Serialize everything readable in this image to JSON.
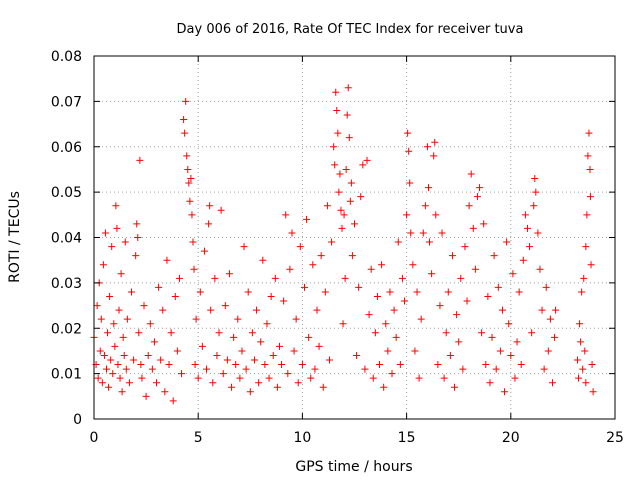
{
  "chart_data": {
    "type": "scatter",
    "title": "Day 006 of 2016, Rate Of TEC Index for receiver tuva",
    "xlabel": "GPS time / hours",
    "ylabel": "ROTI / TECUs",
    "xlim": [
      0,
      25
    ],
    "ylim": [
      0,
      0.08
    ],
    "grid": true,
    "marker": "plus",
    "marker_color": "#ff0000",
    "x_ticks": [
      0,
      5,
      10,
      15,
      20,
      25
    ],
    "x_tick_labels": [
      "0",
      "5",
      "10",
      "15",
      "20",
      "25"
    ],
    "y_ticks": [
      0,
      0.01,
      0.02,
      0.03,
      0.04,
      0.05,
      0.06,
      0.07,
      0.08
    ],
    "y_tick_labels": [
      "0",
      "0.01",
      "0.02",
      "0.03",
      "0.04",
      "0.05",
      "0.06",
      "0.07",
      "0.08"
    ],
    "series": [
      {
        "color": "#ff0000",
        "points": [
          [
            0.0,
            0.018
          ],
          [
            0.1,
            0.012
          ],
          [
            0.15,
            0.025
          ],
          [
            0.2,
            0.009
          ],
          [
            0.25,
            0.03
          ],
          [
            0.3,
            0.015
          ],
          [
            0.35,
            0.022
          ],
          [
            0.4,
            0.008
          ],
          [
            0.45,
            0.034
          ],
          [
            0.5,
            0.014
          ],
          [
            0.55,
            0.041
          ],
          [
            0.6,
            0.011
          ],
          [
            0.65,
            0.019
          ],
          [
            0.7,
            0.007
          ],
          [
            0.75,
            0.027
          ],
          [
            0.8,
            0.013
          ],
          [
            0.85,
            0.038
          ],
          [
            0.9,
            0.01
          ],
          [
            0.95,
            0.021
          ],
          [
            1.0,
            0.016
          ],
          [
            1.05,
            0.047
          ],
          [
            1.1,
            0.042
          ],
          [
            1.15,
            0.012
          ],
          [
            1.2,
            0.024
          ],
          [
            1.25,
            0.009
          ],
          [
            1.3,
            0.032
          ],
          [
            1.35,
            0.006
          ],
          [
            1.4,
            0.018
          ],
          [
            1.45,
            0.014
          ],
          [
            1.5,
            0.039
          ],
          [
            1.55,
            0.011
          ],
          [
            1.6,
            0.022
          ],
          [
            1.7,
            0.008
          ],
          [
            1.8,
            0.028
          ],
          [
            1.9,
            0.013
          ],
          [
            2.0,
            0.036
          ],
          [
            2.05,
            0.043
          ],
          [
            2.1,
            0.04
          ],
          [
            2.15,
            0.019
          ],
          [
            2.2,
            0.057
          ],
          [
            2.25,
            0.012
          ],
          [
            2.3,
            0.009
          ],
          [
            2.4,
            0.025
          ],
          [
            2.5,
            0.005
          ],
          [
            2.6,
            0.014
          ],
          [
            2.7,
            0.021
          ],
          [
            2.8,
            0.011
          ],
          [
            2.9,
            0.017
          ],
          [
            3.0,
            0.008
          ],
          [
            3.1,
            0.029
          ],
          [
            3.2,
            0.013
          ],
          [
            3.3,
            0.024
          ],
          [
            3.4,
            0.006
          ],
          [
            3.5,
            0.035
          ],
          [
            3.6,
            0.012
          ],
          [
            3.7,
            0.019
          ],
          [
            3.8,
            0.004
          ],
          [
            3.9,
            0.027
          ],
          [
            4.0,
            0.015
          ],
          [
            4.1,
            0.031
          ],
          [
            4.2,
            0.01
          ],
          [
            4.3,
            0.066
          ],
          [
            4.35,
            0.063
          ],
          [
            4.4,
            0.07
          ],
          [
            4.45,
            0.058
          ],
          [
            4.5,
            0.055
          ],
          [
            4.55,
            0.052
          ],
          [
            4.6,
            0.048
          ],
          [
            4.65,
            0.053
          ],
          [
            4.7,
            0.045
          ],
          [
            4.75,
            0.039
          ],
          [
            4.8,
            0.033
          ],
          [
            4.85,
            0.012
          ],
          [
            4.9,
            0.022
          ],
          [
            5.0,
            0.009
          ],
          [
            5.1,
            0.028
          ],
          [
            5.2,
            0.016
          ],
          [
            5.3,
            0.037
          ],
          [
            5.4,
            0.011
          ],
          [
            5.5,
            0.043
          ],
          [
            5.55,
            0.047
          ],
          [
            5.6,
            0.024
          ],
          [
            5.7,
            0.008
          ],
          [
            5.8,
            0.031
          ],
          [
            5.9,
            0.014
          ],
          [
            6.0,
            0.019
          ],
          [
            6.1,
            0.046
          ],
          [
            6.2,
            0.01
          ],
          [
            6.3,
            0.025
          ],
          [
            6.4,
            0.013
          ],
          [
            6.5,
            0.032
          ],
          [
            6.6,
            0.007
          ],
          [
            6.7,
            0.018
          ],
          [
            6.8,
            0.012
          ],
          [
            6.9,
            0.022
          ],
          [
            7.0,
            0.009
          ],
          [
            7.1,
            0.015
          ],
          [
            7.2,
            0.038
          ],
          [
            7.3,
            0.011
          ],
          [
            7.4,
            0.028
          ],
          [
            7.5,
            0.006
          ],
          [
            7.6,
            0.019
          ],
          [
            7.7,
            0.013
          ],
          [
            7.8,
            0.024
          ],
          [
            7.9,
            0.008
          ],
          [
            8.0,
            0.017
          ],
          [
            8.1,
            0.035
          ],
          [
            8.2,
            0.012
          ],
          [
            8.3,
            0.021
          ],
          [
            8.4,
            0.009
          ],
          [
            8.5,
            0.027
          ],
          [
            8.6,
            0.014
          ],
          [
            8.7,
            0.031
          ],
          [
            8.8,
            0.007
          ],
          [
            8.9,
            0.016
          ],
          [
            9.0,
            0.012
          ],
          [
            9.1,
            0.026
          ],
          [
            9.2,
            0.045
          ],
          [
            9.3,
            0.01
          ],
          [
            9.4,
            0.033
          ],
          [
            9.5,
            0.041
          ],
          [
            9.6,
            0.015
          ],
          [
            9.7,
            0.022
          ],
          [
            9.8,
            0.008
          ],
          [
            9.9,
            0.038
          ],
          [
            10.0,
            0.012
          ],
          [
            10.1,
            0.029
          ],
          [
            10.2,
            0.044
          ],
          [
            10.3,
            0.018
          ],
          [
            10.4,
            0.009
          ],
          [
            10.5,
            0.034
          ],
          [
            10.6,
            0.011
          ],
          [
            10.7,
            0.024
          ],
          [
            10.8,
            0.016
          ],
          [
            10.9,
            0.036
          ],
          [
            11.0,
            0.007
          ],
          [
            11.1,
            0.028
          ],
          [
            11.2,
            0.047
          ],
          [
            11.3,
            0.013
          ],
          [
            11.4,
            0.039
          ],
          [
            11.5,
            0.06
          ],
          [
            11.55,
            0.056
          ],
          [
            11.6,
            0.072
          ],
          [
            11.65,
            0.068
          ],
          [
            11.7,
            0.063
          ],
          [
            11.75,
            0.05
          ],
          [
            11.8,
            0.054
          ],
          [
            11.85,
            0.046
          ],
          [
            11.9,
            0.042
          ],
          [
            11.95,
            0.021
          ],
          [
            12.0,
            0.045
          ],
          [
            12.05,
            0.031
          ],
          [
            12.1,
            0.055
          ],
          [
            12.15,
            0.067
          ],
          [
            12.2,
            0.073
          ],
          [
            12.25,
            0.062
          ],
          [
            12.3,
            0.048
          ],
          [
            12.35,
            0.052
          ],
          [
            12.4,
            0.036
          ],
          [
            12.5,
            0.043
          ],
          [
            12.6,
            0.014
          ],
          [
            12.7,
            0.029
          ],
          [
            12.8,
            0.049
          ],
          [
            12.9,
            0.056
          ],
          [
            13.0,
            0.011
          ],
          [
            13.1,
            0.057
          ],
          [
            13.2,
            0.023
          ],
          [
            13.3,
            0.033
          ],
          [
            13.4,
            0.009
          ],
          [
            13.5,
            0.019
          ],
          [
            13.6,
            0.027
          ],
          [
            13.7,
            0.012
          ],
          [
            13.8,
            0.034
          ],
          [
            13.9,
            0.007
          ],
          [
            14.0,
            0.021
          ],
          [
            14.1,
            0.015
          ],
          [
            14.2,
            0.028
          ],
          [
            14.3,
            0.01
          ],
          [
            14.4,
            0.024
          ],
          [
            14.5,
            0.018
          ],
          [
            14.6,
            0.039
          ],
          [
            14.7,
            0.012
          ],
          [
            14.8,
            0.031
          ],
          [
            14.9,
            0.026
          ],
          [
            15.0,
            0.045
          ],
          [
            15.05,
            0.063
          ],
          [
            15.1,
            0.059
          ],
          [
            15.15,
            0.052
          ],
          [
            15.2,
            0.041
          ],
          [
            15.3,
            0.034
          ],
          [
            15.4,
            0.015
          ],
          [
            15.5,
            0.028
          ],
          [
            15.6,
            0.009
          ],
          [
            15.7,
            0.022
          ],
          [
            15.8,
            0.041
          ],
          [
            15.9,
            0.047
          ],
          [
            16.0,
            0.06
          ],
          [
            16.05,
            0.051
          ],
          [
            16.1,
            0.039
          ],
          [
            16.2,
            0.032
          ],
          [
            16.3,
            0.058
          ],
          [
            16.35,
            0.061
          ],
          [
            16.4,
            0.045
          ],
          [
            16.5,
            0.012
          ],
          [
            16.6,
            0.025
          ],
          [
            16.7,
            0.041
          ],
          [
            16.8,
            0.009
          ],
          [
            16.9,
            0.019
          ],
          [
            17.0,
            0.028
          ],
          [
            17.1,
            0.014
          ],
          [
            17.2,
            0.036
          ],
          [
            17.3,
            0.007
          ],
          [
            17.4,
            0.023
          ],
          [
            17.5,
            0.017
          ],
          [
            17.6,
            0.031
          ],
          [
            17.7,
            0.011
          ],
          [
            17.8,
            0.038
          ],
          [
            17.9,
            0.026
          ],
          [
            18.0,
            0.047
          ],
          [
            18.1,
            0.054
          ],
          [
            18.2,
            0.042
          ],
          [
            18.3,
            0.033
          ],
          [
            18.4,
            0.049
          ],
          [
            18.5,
            0.051
          ],
          [
            18.6,
            0.019
          ],
          [
            18.7,
            0.043
          ],
          [
            18.8,
            0.012
          ],
          [
            18.9,
            0.027
          ],
          [
            19.0,
            0.008
          ],
          [
            19.1,
            0.018
          ],
          [
            19.2,
            0.036
          ],
          [
            19.3,
            0.011
          ],
          [
            19.4,
            0.029
          ],
          [
            19.5,
            0.015
          ],
          [
            19.6,
            0.024
          ],
          [
            19.7,
            0.006
          ],
          [
            19.8,
            0.039
          ],
          [
            19.9,
            0.021
          ],
          [
            20.0,
            0.014
          ],
          [
            20.1,
            0.032
          ],
          [
            20.2,
            0.009
          ],
          [
            20.3,
            0.017
          ],
          [
            20.4,
            0.028
          ],
          [
            20.5,
            0.012
          ],
          [
            20.6,
            0.035
          ],
          [
            20.7,
            0.045
          ],
          [
            20.8,
            0.042
          ],
          [
            20.9,
            0.038
          ],
          [
            21.0,
            0.019
          ],
          [
            21.1,
            0.047
          ],
          [
            21.15,
            0.053
          ],
          [
            21.2,
            0.05
          ],
          [
            21.3,
            0.041
          ],
          [
            21.4,
            0.033
          ],
          [
            21.5,
            0.024
          ],
          [
            21.6,
            0.011
          ],
          [
            21.7,
            0.029
          ],
          [
            21.8,
            0.015
          ],
          [
            21.9,
            0.022
          ],
          [
            22.0,
            0.008
          ],
          [
            22.1,
            0.018
          ],
          [
            22.15,
            0.024
          ],
          [
            23.2,
            0.013
          ],
          [
            23.25,
            0.009
          ],
          [
            23.3,
            0.021
          ],
          [
            23.35,
            0.017
          ],
          [
            23.4,
            0.028
          ],
          [
            23.45,
            0.011
          ],
          [
            23.5,
            0.031
          ],
          [
            23.55,
            0.015
          ],
          [
            23.6,
            0.038
          ],
          [
            23.65,
            0.045
          ],
          [
            23.7,
            0.058
          ],
          [
            23.75,
            0.063
          ],
          [
            23.8,
            0.055
          ],
          [
            23.82,
            0.049
          ],
          [
            23.85,
            0.034
          ],
          [
            23.9,
            0.012
          ],
          [
            23.95,
            0.006
          ],
          [
            23.6,
            0.008
          ]
        ]
      }
    ]
  }
}
